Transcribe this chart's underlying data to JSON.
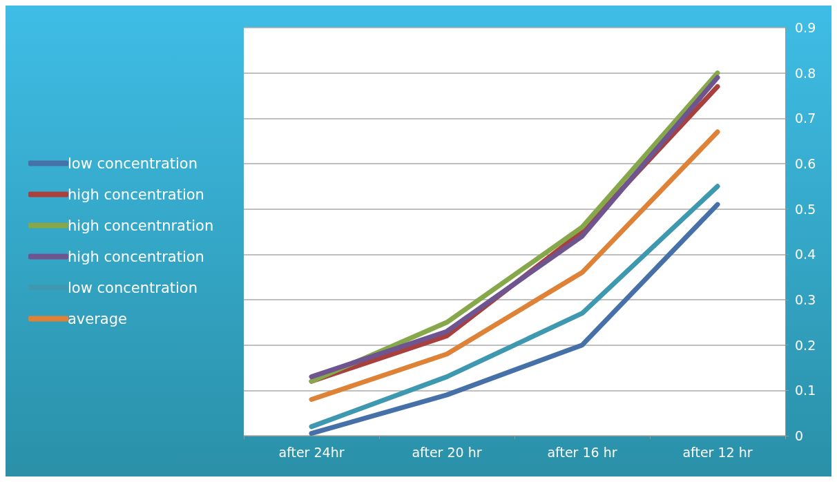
{
  "chart_data": {
    "type": "line",
    "categories": [
      "after 24hr",
      "after 20 hr",
      "after 16 hr",
      "after 12 hr"
    ],
    "series": [
      {
        "name": "low concentration",
        "color": "#4570a8",
        "values": [
          0.005,
          0.09,
          0.2,
          0.51
        ]
      },
      {
        "name": "high concentration",
        "color": "#a8403d",
        "values": [
          0.12,
          0.22,
          0.45,
          0.77
        ]
      },
      {
        "name": "high concentnration",
        "color": "#86a84a",
        "values": [
          0.12,
          0.25,
          0.46,
          0.8
        ]
      },
      {
        "name": "high concentration",
        "color": "#6e5590",
        "values": [
          0.13,
          0.23,
          0.44,
          0.79
        ]
      },
      {
        "name": "low concentration",
        "color": "#3e98b0",
        "values": [
          0.02,
          0.13,
          0.27,
          0.55
        ]
      },
      {
        "name": "average",
        "color": "#dd8236",
        "values": [
          0.08,
          0.18,
          0.36,
          0.67
        ]
      }
    ],
    "ylim": [
      0,
      0.9
    ],
    "yticks": [
      0,
      0.1,
      0.2,
      0.3,
      0.4,
      0.5,
      0.6,
      0.7,
      0.8,
      0.9
    ],
    "grid": "y",
    "legend": "left",
    "marker": "none",
    "line_style": "solid"
  }
}
